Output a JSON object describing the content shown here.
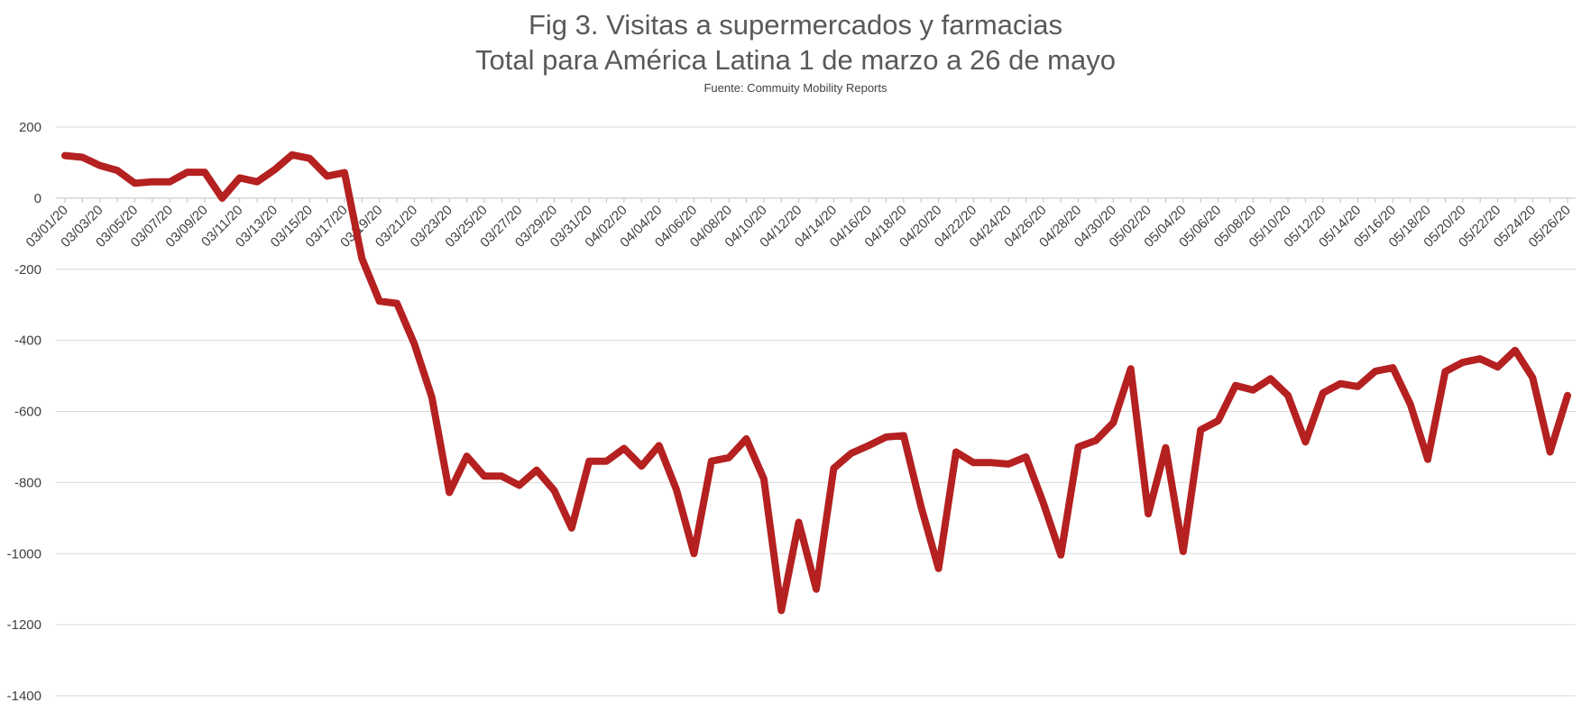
{
  "chart_data": {
    "type": "line",
    "title_line1": "Fig 3. Visitas a supermercados y farmacias",
    "title_line2": "Total para América Latina 1 de marzo a 26 de mayo",
    "subtitle": "Fuente: Commuity Mobility Reports",
    "xlabel": "",
    "ylabel": "",
    "ylim": [
      -1400,
      200
    ],
    "yticks": [
      200,
      0,
      -200,
      -400,
      -600,
      -800,
      -1000,
      -1200,
      -1400
    ],
    "grid": true,
    "legend": "none",
    "line_color": "#b52020",
    "x": [
      "03/01/20",
      "03/02/20",
      "03/03/20",
      "03/04/20",
      "03/05/20",
      "03/06/20",
      "03/07/20",
      "03/08/20",
      "03/09/20",
      "03/10/20",
      "03/11/20",
      "03/12/20",
      "03/13/20",
      "03/14/20",
      "03/15/20",
      "03/16/20",
      "03/17/20",
      "03/18/20",
      "03/19/20",
      "03/20/20",
      "03/21/20",
      "03/22/20",
      "03/23/20",
      "03/24/20",
      "03/25/20",
      "03/26/20",
      "03/27/20",
      "03/28/20",
      "03/29/20",
      "03/30/20",
      "03/31/20",
      "04/01/20",
      "04/02/20",
      "04/03/20",
      "04/04/20",
      "04/05/20",
      "04/06/20",
      "04/07/20",
      "04/08/20",
      "04/09/20",
      "04/10/20",
      "04/11/20",
      "04/12/20",
      "04/13/20",
      "04/14/20",
      "04/15/20",
      "04/16/20",
      "04/17/20",
      "04/18/20",
      "04/19/20",
      "04/20/20",
      "04/21/20",
      "04/22/20",
      "04/23/20",
      "04/24/20",
      "04/25/20",
      "04/26/20",
      "04/27/20",
      "04/28/20",
      "04/29/20",
      "04/30/20",
      "05/01/20",
      "05/02/20",
      "05/03/20",
      "05/04/20",
      "05/05/20",
      "05/06/20",
      "05/07/20",
      "05/08/20",
      "05/09/20",
      "05/10/20",
      "05/11/20",
      "05/12/20",
      "05/13/20",
      "05/14/20",
      "05/15/20",
      "05/16/20",
      "05/17/20",
      "05/18/20",
      "05/19/20",
      "05/20/20",
      "05/21/20",
      "05/22/20",
      "05/23/20",
      "05/24/20",
      "05/25/20",
      "05/26/20"
    ],
    "x_tick_labels": [
      "03/01/20",
      "03/03/20",
      "03/05/20",
      "03/07/20",
      "03/09/20",
      "03/11/20",
      "03/13/20",
      "03/15/20",
      "03/17/20",
      "03/19/20",
      "03/21/20",
      "03/23/20",
      "03/25/20",
      "03/27/20",
      "03/29/20",
      "03/31/20",
      "04/02/20",
      "04/04/20",
      "04/06/20",
      "04/08/20",
      "04/10/20",
      "04/12/20",
      "04/14/20",
      "04/16/20",
      "04/18/20",
      "04/20/20",
      "04/22/20",
      "04/24/20",
      "04/26/20",
      "04/28/20",
      "04/30/20",
      "05/02/20",
      "05/04/20",
      "05/06/20",
      "05/08/20",
      "05/10/20",
      "05/12/20",
      "05/14/20",
      "05/16/20",
      "05/18/20",
      "05/20/20",
      "05/22/20",
      "05/24/20",
      "05/26/20"
    ],
    "series": [
      {
        "values": [
          120,
          115,
          92,
          78,
          42,
          46,
          46,
          73,
          73,
          0,
          57,
          46,
          80,
          122,
          112,
          62,
          72,
          -170,
          -290,
          -296,
          -410,
          -560,
          -828,
          -726,
          -782,
          -782,
          -808,
          -765,
          -822,
          -928,
          -740,
          -740,
          -704,
          -754,
          -696,
          -820,
          -1000,
          -740,
          -730,
          -677,
          -790,
          -1160,
          -912,
          -1100,
          -760,
          -718,
          -696,
          -672,
          -668,
          -868,
          -1042,
          -714,
          -744,
          -744,
          -748,
          -728,
          -858,
          -1004,
          -700,
          -682,
          -632,
          -480,
          -888,
          -702,
          -994,
          -652,
          -626,
          -527,
          -540,
          -508,
          -555,
          -686,
          -548,
          -522,
          -530,
          -487,
          -477,
          -580,
          -735,
          -488,
          -462,
          -452,
          -475,
          -428,
          -505,
          -714,
          -555
        ]
      }
    ]
  }
}
